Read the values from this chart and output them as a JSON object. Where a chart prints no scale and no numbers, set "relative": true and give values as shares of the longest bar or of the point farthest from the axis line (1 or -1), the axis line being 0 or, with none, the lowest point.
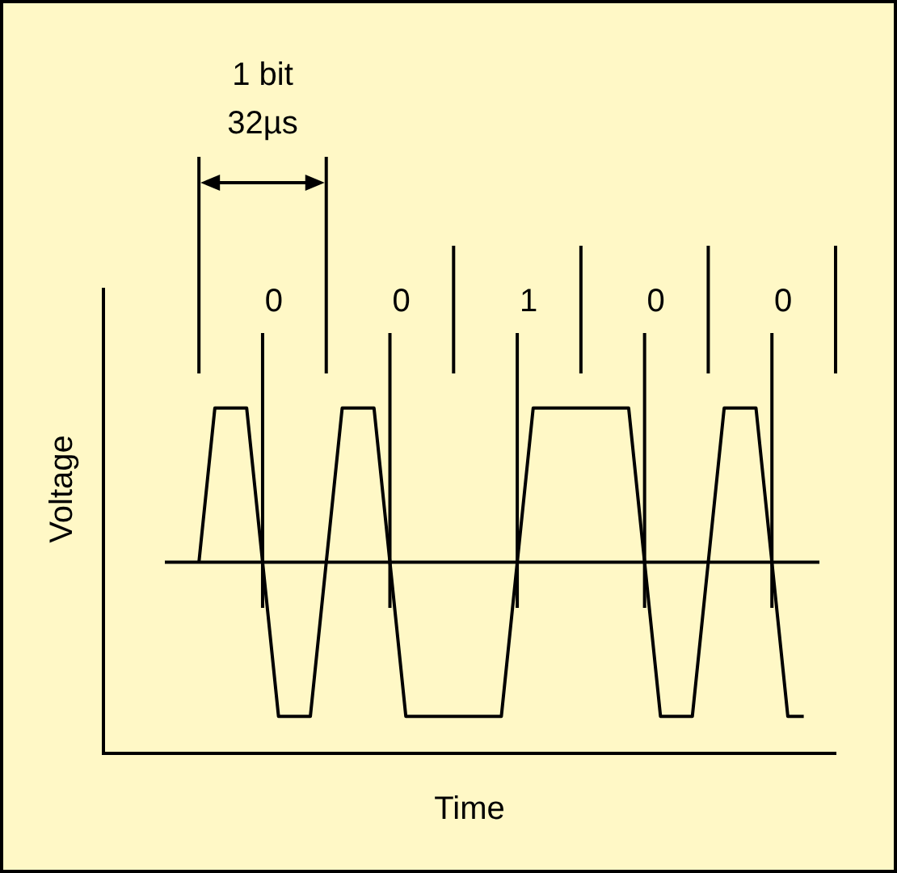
{
  "chart_data": {
    "type": "line",
    "relative": true,
    "xlabel": "Time",
    "ylabel": "Voltage",
    "legend": false,
    "grid": "x",
    "marker": "none",
    "line_style": "solid",
    "categories": [
      null,
      null,
      null,
      null,
      null,
      null,
      null,
      null,
      null,
      null,
      null,
      null,
      null,
      null,
      null,
      null,
      null,
      null,
      null,
      null,
      null,
      null,
      null,
      null,
      null,
      null,
      null,
      null,
      null,
      null,
      null,
      null,
      null,
      null,
      null,
      null,
      null,
      null,
      null,
      null,
      null,
      null,
      null,
      null,
      null,
      null,
      null
    ],
    "series": [
      {
        "color": "#000000",
        "values": [
          null,
          null,
          null,
          null,
          null,
          null,
          0,
          1,
          1,
          1,
          0,
          -1,
          -1,
          -1,
          0,
          1,
          1,
          1,
          0,
          -1,
          -1,
          -1,
          -1,
          -1,
          -1,
          -1,
          0,
          1,
          1,
          1,
          1,
          1,
          1,
          1,
          0,
          -1,
          -1,
          -1,
          0,
          1,
          1,
          1,
          0,
          -1,
          -1,
          null,
          null
        ]
      }
    ],
    "annotations": [
      "1 bit",
      "32µs",
      "0",
      "0",
      "1",
      "0",
      "0"
    ]
  }
}
